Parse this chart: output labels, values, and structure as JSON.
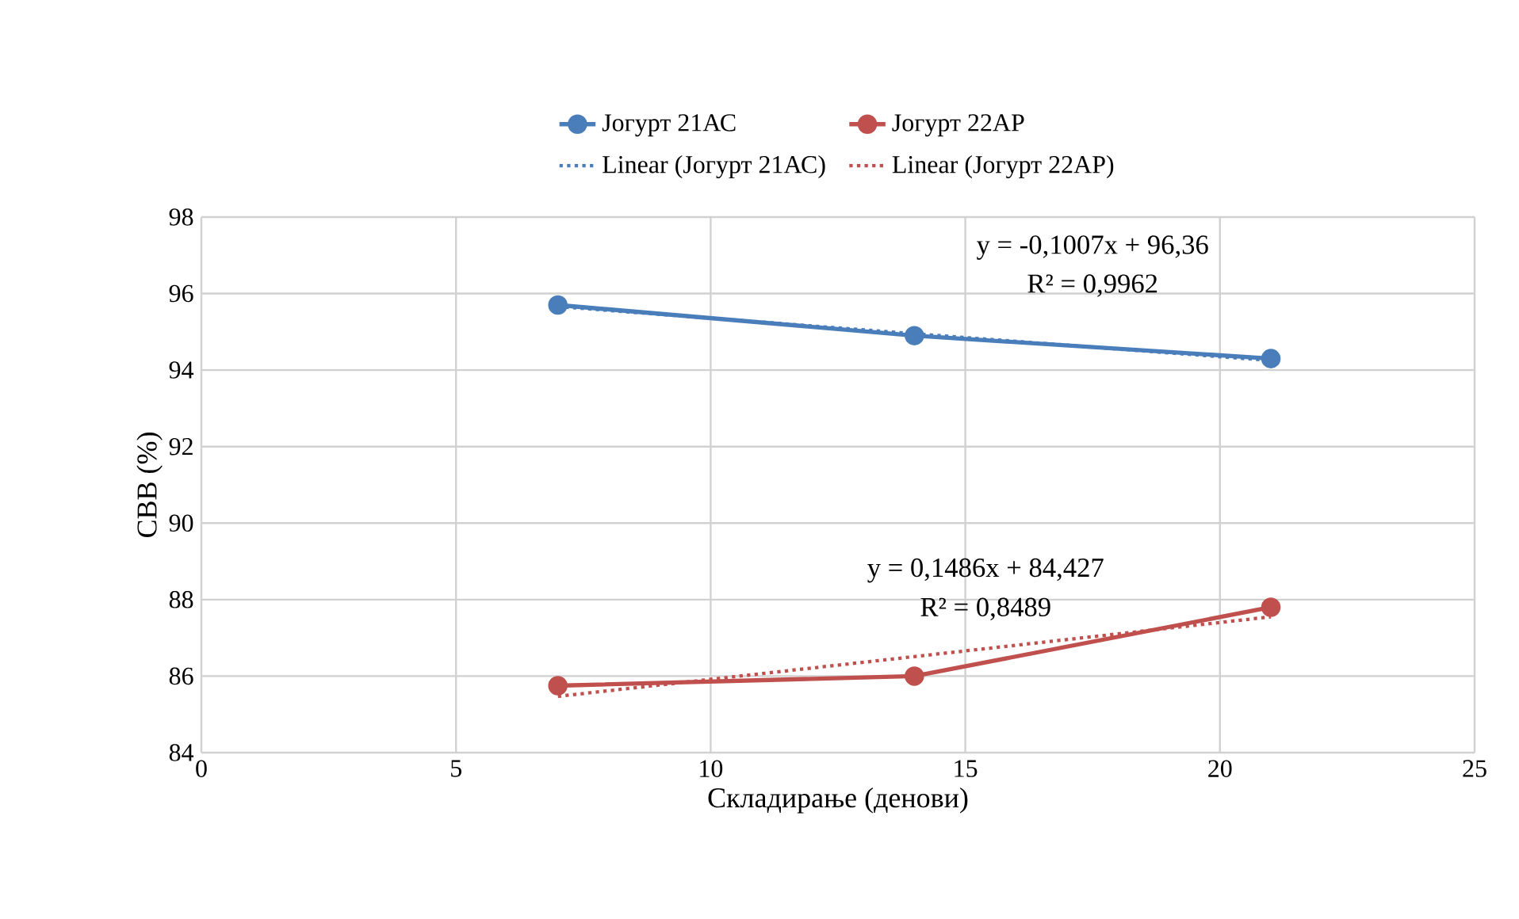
{
  "chart_data": {
    "type": "line",
    "xlabel": "Складирање (денови)",
    "ylabel": "СВВ (%)",
    "x": [
      7,
      14,
      21
    ],
    "series": [
      {
        "name": "Јогурт 21АС",
        "color": "#4a7ebb",
        "values": [
          95.7,
          94.9,
          94.3
        ],
        "marker": "circle",
        "line_style": "solid"
      },
      {
        "name": "Јогурт 22АР",
        "color": "#c0504d",
        "values": [
          85.75,
          86.0,
          87.8
        ],
        "marker": "circle",
        "line_style": "solid"
      },
      {
        "name": "Linear (Јогурт 21АС)",
        "color": "#4a7ebb",
        "values": [
          95.66,
          94.95,
          94.25
        ],
        "marker": "none",
        "line_style": "dotted"
      },
      {
        "name": "Linear (Јогурт 22АР)",
        "color": "#c0504d",
        "values": [
          85.47,
          86.51,
          87.55
        ],
        "marker": "none",
        "line_style": "dotted"
      }
    ],
    "annotations": [
      "y = -0,1007x + 96,36",
      "R² = 0,9962",
      "y = 0,1486x + 84,427",
      "R² = 0,8489"
    ],
    "xlim": [
      0,
      25
    ],
    "xticks": [
      0,
      5,
      10,
      15,
      20,
      25
    ],
    "ylim": [
      84,
      98
    ],
    "yticks": [
      84,
      86,
      88,
      90,
      92,
      94,
      96,
      98
    ],
    "grid": true,
    "legend": "top"
  }
}
